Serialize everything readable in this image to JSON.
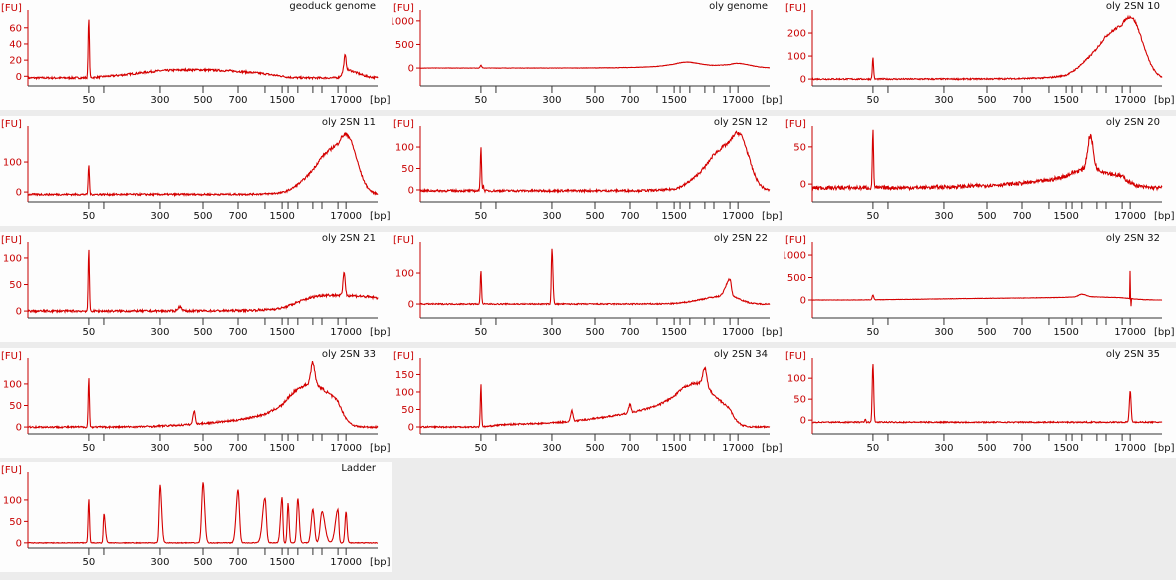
{
  "axis": {
    "y_unit": "[FU]",
    "x_unit": "[bp]",
    "x_ticks_bp": [
      50,
      100,
      300,
      500,
      700,
      1000,
      1500,
      2000,
      3000,
      5000,
      7000,
      10000,
      17000
    ],
    "x_tick_labels": [
      "50",
      "",
      "300",
      "500",
      "700",
      "",
      "1500",
      "",
      "",
      "",
      "",
      "",
      "17000"
    ],
    "colors": {
      "trace": "#d40000",
      "y_axis": "#c80000",
      "x_axis": "#333333"
    }
  },
  "chart_data": [
    {
      "type": "line",
      "title": "geoduck genome",
      "ylim": [
        -12,
        82
      ],
      "yticks": [
        0,
        20,
        40,
        60
      ],
      "baseline": -2,
      "noise": 1.2,
      "peaks": [
        {
          "bp": 50,
          "fu": 75,
          "w": 0.012
        },
        {
          "bp": 16000,
          "fu": 18,
          "w": 0.03
        }
      ],
      "humps": [
        {
          "bp": 450,
          "fu": 10,
          "wl": 0.35,
          "wr": 0.3
        },
        {
          "bp": 16000,
          "fu": 10,
          "wl": 0.08,
          "wr": 0.35
        }
      ]
    },
    {
      "type": "line",
      "title": "oly genome",
      "ylim": [
        -380,
        1230
      ],
      "yticks": [
        0,
        500,
        1000
      ],
      "baseline": 0,
      "noise": 4,
      "peaks": [
        {
          "bp": 50,
          "fu": 60,
          "w": 0.015
        }
      ],
      "humps": [
        {
          "bp": 2500,
          "fu": 100,
          "wl": 0.25,
          "wr": 0.2
        },
        {
          "bp": 17000,
          "fu": 70,
          "wl": 0.2,
          "wr": 0.35
        },
        {
          "bp": 6000,
          "fu": 40,
          "wl": 0.4,
          "wr": 0.6
        }
      ]
    },
    {
      "type": "line",
      "title": "oly 2SN 10",
      "ylim": [
        -30,
        300
      ],
      "yticks": [
        0,
        100,
        200
      ],
      "baseline": 0,
      "noise": 3,
      "peaks": [
        {
          "bp": 50,
          "fu": 95,
          "w": 0.012
        }
      ],
      "humps": [
        {
          "bp": 17000,
          "fu": 270,
          "wl": 0.45,
          "wr": 0.35
        }
      ]
    },
    {
      "type": "line",
      "title": "oly 2SN 11",
      "ylim": [
        -33,
        220
      ],
      "yticks": [
        0,
        100
      ],
      "baseline": -8,
      "noise": 3,
      "peaks": [
        {
          "bp": 50,
          "fu": 100,
          "w": 0.012
        }
      ],
      "humps": [
        {
          "bp": 17000,
          "fu": 200,
          "wl": 0.4,
          "wr": 0.3
        }
      ]
    },
    {
      "type": "line",
      "title": "oly 2SN 12",
      "ylim": [
        -28,
        149
      ],
      "yticks": [
        0,
        50,
        100
      ],
      "baseline": -2,
      "noise": 2.5,
      "peaks": [
        {
          "bp": 50,
          "fu": 105,
          "w": 0.012
        },
        {
          "bp": 56,
          "fu": 12,
          "w": 0.01
        }
      ],
      "humps": [
        {
          "bp": 17000,
          "fu": 135,
          "wl": 0.4,
          "wr": 0.3
        }
      ]
    },
    {
      "type": "line",
      "title": "oly 2SN 20",
      "ylim": [
        -24,
        78
      ],
      "yticks": [
        0,
        50
      ],
      "baseline": -5,
      "noise": 2.5,
      "peaks": [
        {
          "bp": 50,
          "fu": 80,
          "w": 0.012
        },
        {
          "bp": 4000,
          "fu": 45,
          "w": 0.04
        }
      ],
      "humps": [
        {
          "bp": 4000,
          "fu": 25,
          "wl": 0.45,
          "wr": 0.4
        }
      ]
    },
    {
      "type": "line",
      "title": "oly 2SN 21",
      "ylim": [
        -13,
        130
      ],
      "yticks": [
        0,
        50,
        100
      ],
      "baseline": 0,
      "noise": 2,
      "peaks": [
        {
          "bp": 50,
          "fu": 115,
          "w": 0.012
        },
        {
          "bp": 380,
          "fu": 8,
          "w": 0.01
        },
        {
          "bp": 15000,
          "fu": 45,
          "w": 0.03
        }
      ],
      "humps": [
        {
          "bp": 8000,
          "fu": 30,
          "wl": 0.4,
          "wr": 2.0
        }
      ]
    },
    {
      "type": "line",
      "title": "oly 2SN 22",
      "ylim": [
        -45,
        200
      ],
      "yticks": [
        0,
        100
      ],
      "baseline": 0,
      "noise": 2,
      "peaks": [
        {
          "bp": 50,
          "fu": 110,
          "w": 0.012
        },
        {
          "bp": 300,
          "fu": 180,
          "w": 0.005
        },
        {
          "bp": 10000,
          "fu": 55,
          "w": 0.04
        }
      ],
      "humps": [
        {
          "bp": 10000,
          "fu": 25,
          "wl": 0.35,
          "wr": 0.3
        }
      ]
    },
    {
      "type": "line",
      "title": "oly 2SN 32",
      "ylim": [
        -400,
        1290
      ],
      "yticks": [
        0,
        500,
        1000
      ],
      "baseline": 0,
      "noise": 4,
      "peaks": [
        {
          "bp": 50,
          "fu": 110,
          "w": 0.015
        },
        {
          "bp": 3000,
          "fu": 60,
          "w": 0.06
        },
        {
          "bp": 17000,
          "fu": 1100,
          "w": 0.004
        },
        {
          "bp": 17800,
          "fu": -300,
          "w": 0.004
        }
      ],
      "humps": [
        {
          "bp": 4000,
          "fu": 70,
          "wl": 0.8,
          "wr": 0.5
        }
      ]
    },
    {
      "type": "line",
      "title": "oly 2SN 33",
      "ylim": [
        -16,
        160
      ],
      "yticks": [
        0,
        50,
        100
      ],
      "baseline": 0,
      "noise": 2,
      "peaks": [
        {
          "bp": 50,
          "fu": 115,
          "w": 0.012
        },
        {
          "bp": 450,
          "fu": 30,
          "w": 0.006
        },
        {
          "bp": 5000,
          "fu": 50,
          "w": 0.03
        }
      ],
      "humps": [
        {
          "bp": 5000,
          "fu": 100,
          "wl": 0.45,
          "wr": 0.3
        }
      ]
    },
    {
      "type": "line",
      "title": "oly 2SN 34",
      "ylim": [
        -20,
        197
      ],
      "yticks": [
        0,
        50,
        100,
        150
      ],
      "baseline": 0,
      "noise": 2,
      "peaks": [
        {
          "bp": 50,
          "fu": 120,
          "w": 0.012
        },
        {
          "bp": 380,
          "fu": 30,
          "w": 0.006
        },
        {
          "bp": 700,
          "fu": 25,
          "w": 0.006
        },
        {
          "bp": 5000,
          "fu": 50,
          "w": 0.03
        }
      ],
      "humps": [
        {
          "bp": 4000,
          "fu": 125,
          "wl": 0.5,
          "wr": 0.3
        },
        {
          "bp": 150,
          "fu": 6,
          "wl": 0.2,
          "wr": 0.2
        }
      ]
    },
    {
      "type": "line",
      "title": "oly 2SN 35",
      "ylim": [
        -33,
        148
      ],
      "yticks": [
        0,
        50,
        100
      ],
      "baseline": -5,
      "noise": 1.5,
      "peaks": [
        {
          "bp": 35,
          "fu": 8,
          "w": 0.01
        },
        {
          "bp": 50,
          "fu": 140,
          "w": 0.015
        },
        {
          "bp": 17000,
          "fu": 75,
          "w": 0.025
        }
      ],
      "humps": []
    },
    {
      "type": "line",
      "title": "Ladder",
      "ylim": [
        -12,
        165
      ],
      "yticks": [
        0,
        50,
        100
      ],
      "baseline": 0,
      "noise": 0.8,
      "peaks": [
        {
          "bp": 50,
          "fu": 103,
          "w": 0.014
        },
        {
          "bp": 100,
          "fu": 68,
          "w": 0.012
        },
        {
          "bp": 300,
          "fu": 135,
          "w": 0.008
        },
        {
          "bp": 500,
          "fu": 140,
          "w": 0.007
        },
        {
          "bp": 700,
          "fu": 123,
          "w": 0.008
        },
        {
          "bp": 1000,
          "fu": 105,
          "w": 0.014
        },
        {
          "bp": 1500,
          "fu": 107,
          "w": 0.016
        },
        {
          "bp": 2000,
          "fu": 92,
          "w": 0.018
        },
        {
          "bp": 3000,
          "fu": 104,
          "w": 0.02
        },
        {
          "bp": 5000,
          "fu": 78,
          "w": 0.025
        },
        {
          "bp": 7000,
          "fu": 73,
          "w": 0.028
        },
        {
          "bp": 10000,
          "fu": 78,
          "w": 0.025
        },
        {
          "bp": 17000,
          "fu": 72,
          "w": 0.03
        }
      ],
      "humps": []
    }
  ]
}
